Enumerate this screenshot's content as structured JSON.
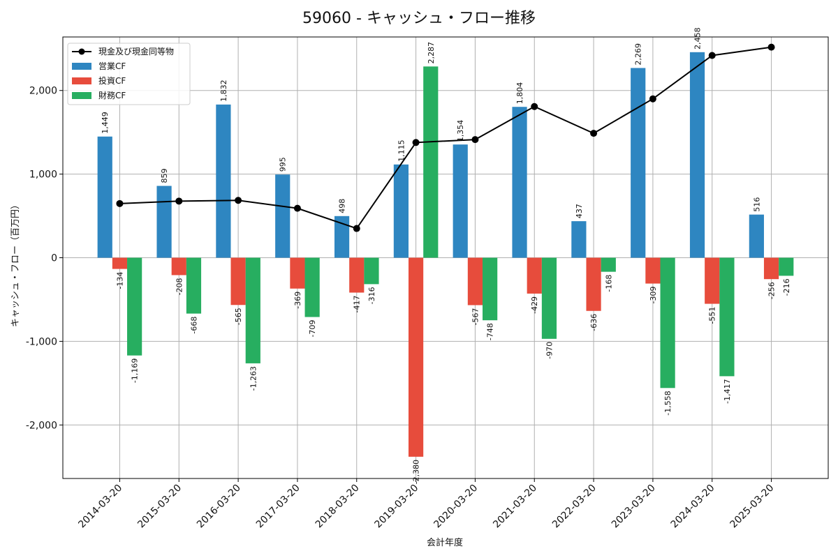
{
  "chart_data": {
    "type": "bar",
    "title": "59060 - キャッシュ・フロー推移",
    "xlabel": "会計年度",
    "ylabel": "キャッシュ・フロー（百万円）",
    "ylim": [
      -2640,
      2640
    ],
    "yticks": [
      -2000,
      -1000,
      0,
      1000,
      2000
    ],
    "ytick_labels": [
      "-2,000",
      "-1,000",
      "0",
      "1,000",
      "2,000"
    ],
    "grid": true,
    "legend_position": "top-left",
    "categories": [
      "2014-03-20",
      "2015-03-20",
      "2016-03-20",
      "2017-03-20",
      "2018-03-20",
      "2019-03-20",
      "2020-03-20",
      "2021-03-20",
      "2022-03-20",
      "2023-03-20",
      "2024-03-20",
      "2025-03-20"
    ],
    "series": [
      {
        "name": "営業CF",
        "type": "bar",
        "color": "#2e86c1",
        "values": [
          1449,
          859,
          1832,
          995,
          498,
          1115,
          1354,
          1804,
          437,
          2269,
          2458,
          516
        ],
        "labels": [
          "1,449",
          "859",
          "1,832",
          "995",
          "498",
          "1,115",
          "1,354",
          "1,804",
          "437",
          "2,269",
          "2,458",
          "516"
        ]
      },
      {
        "name": "投資CF",
        "type": "bar",
        "color": "#e74c3c",
        "values": [
          -134,
          -208,
          -565,
          -369,
          -417,
          -2380,
          -567,
          -429,
          -636,
          -309,
          -551,
          -256
        ],
        "labels": [
          "-134",
          "-208",
          "-565",
          "-369",
          "-417",
          "-2,380",
          "-567",
          "-429",
          "-636",
          "-309",
          "-551",
          "-256"
        ]
      },
      {
        "name": "財務CF",
        "type": "bar",
        "color": "#27ae60",
        "values": [
          -1169,
          -668,
          -1263,
          -709,
          -316,
          2287,
          -748,
          -970,
          -168,
          -1558,
          -1417,
          -216
        ],
        "labels": [
          "-1,169",
          "-668",
          "-1,263",
          "-709",
          "-316",
          "2,287",
          "-748",
          "-970",
          "-168",
          "-1,558",
          "-1,417",
          "-216"
        ]
      },
      {
        "name": "現金及び現金同等物",
        "type": "line",
        "color": "#000000",
        "values": [
          648,
          677,
          686,
          591,
          350,
          1378,
          1413,
          1808,
          1488,
          1900,
          2419,
          2518
        ]
      }
    ]
  }
}
